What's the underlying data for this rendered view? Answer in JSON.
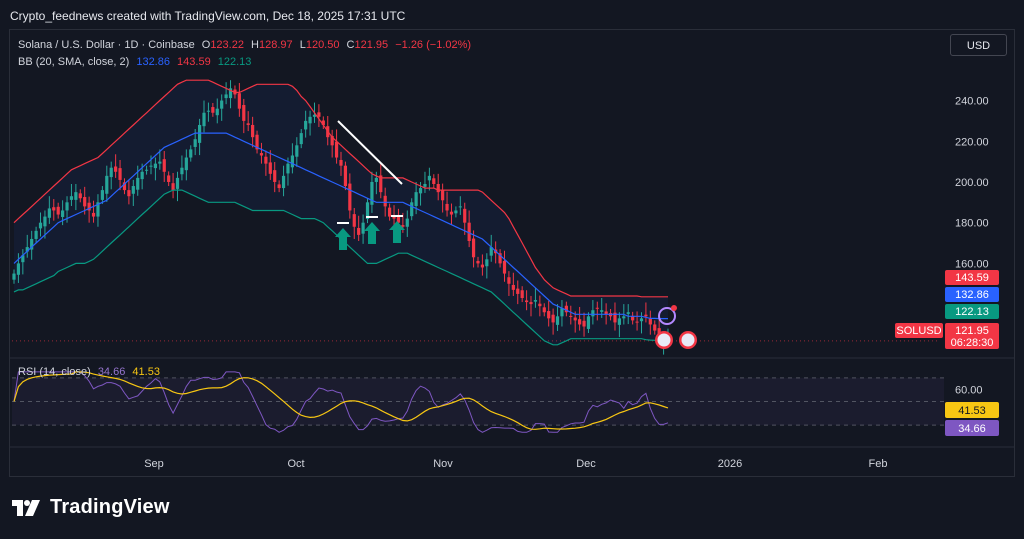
{
  "header": {
    "caption": "Crypto_feednews created with TradingView.com, Dec 18, 2025 17:31 UTC"
  },
  "symbol": {
    "name": "Solana / U.S. Dollar · 1D · Coinbase",
    "open_label": "O",
    "open": "123.22",
    "high_label": "H",
    "high": "128.97",
    "low_label": "L",
    "low": "120.50",
    "close_label": "C",
    "close": "121.95",
    "change": "−1.26 (−1.02%)"
  },
  "bb_legend": {
    "name": "BB (20, SMA, close, 2)",
    "basis": "132.86",
    "upper": "143.59",
    "lower": "122.13"
  },
  "rsi_legend": {
    "name": "RSI (14, close)",
    "rsi": "34.66",
    "ma": "41.53"
  },
  "currency_button": "USD",
  "brand": "TradingView",
  "colors": {
    "background": "#131722",
    "up": "#26a69a",
    "down": "#f23645",
    "bb_upper": "#f23645",
    "bb_basis": "#2962ff",
    "bb_lower": "#089981",
    "rsi_line": "#7e57c2",
    "rsi_ma": "#f7c613"
  },
  "chart_data": {
    "type": "candlestick",
    "title": "Solana / U.S. Dollar · 1D · Coinbase",
    "y_axis": {
      "ticks": [
        "240.00",
        "220.00",
        "200.00",
        "180.00",
        "160.00"
      ],
      "ylim": [
        115,
        255
      ]
    },
    "x_axis": {
      "ticks": [
        "Sep",
        "Oct",
        "Nov",
        "Dec",
        "2026",
        "Feb"
      ]
    },
    "price_labels": [
      {
        "name": "bb-upper",
        "text": "143.59",
        "color": "#f23645"
      },
      {
        "name": "bb-basis",
        "text": "132.86",
        "color": "#2962ff"
      },
      {
        "name": "bb-lower",
        "text": "122.13",
        "color": "#089981"
      },
      {
        "name": "last-price",
        "text": "121.95",
        "color": "#f23645",
        "symbol": "SOLUSD",
        "countdown": "06:28:30"
      }
    ],
    "close_series": [
      155,
      160,
      164,
      168,
      172,
      176,
      180,
      183,
      187,
      186,
      184,
      186,
      190,
      193,
      195,
      192,
      188,
      186,
      183,
      190,
      196,
      203,
      207,
      205,
      201,
      196,
      193,
      198,
      202,
      205,
      206,
      208,
      209,
      210,
      205,
      200,
      196,
      202,
      207,
      212,
      216,
      221,
      228,
      234,
      235,
      234,
      236,
      240,
      243,
      246,
      243,
      236,
      230,
      228,
      222,
      216,
      213,
      209,
      204,
      200,
      197,
      203,
      209,
      213,
      218,
      224,
      230,
      232,
      233,
      232,
      228,
      222,
      218,
      212,
      208,
      198,
      186,
      178,
      174,
      180,
      190,
      200,
      202,
      195,
      188,
      183,
      182,
      180,
      178,
      182,
      190,
      195,
      197,
      199,
      203,
      199,
      195,
      191,
      186,
      184,
      186,
      188,
      180,
      171,
      163,
      160,
      158,
      162,
      168,
      165,
      160,
      155,
      150,
      147,
      145,
      143,
      141,
      140,
      142,
      139,
      136,
      133,
      131,
      134,
      138,
      136,
      134,
      132,
      130,
      129,
      134,
      137,
      138,
      137,
      135,
      134,
      131,
      133,
      134,
      136,
      132,
      131,
      133,
      134,
      130,
      127,
      123,
      122,
      121.95
    ],
    "bb_upper": [
      180,
      182,
      184,
      186,
      188,
      190,
      192,
      194,
      196,
      198,
      200,
      202,
      204,
      206,
      207,
      208,
      209,
      210,
      211,
      212,
      214,
      216,
      218,
      220,
      222,
      224,
      226,
      228,
      230,
      232,
      234,
      236,
      238,
      240,
      242,
      244,
      246,
      248,
      249,
      250,
      250,
      250,
      250,
      250,
      250,
      249,
      248,
      247,
      246,
      245,
      244,
      244,
      245,
      246,
      247,
      248,
      248,
      248,
      248,
      248,
      248,
      248,
      248,
      247,
      245,
      242,
      240,
      237,
      234,
      231,
      228,
      225,
      222,
      220,
      218,
      216,
      214,
      212,
      210,
      208,
      206,
      204,
      203,
      202,
      202,
      202,
      202,
      202,
      202,
      201,
      200,
      199,
      198,
      197,
      197,
      197,
      196,
      196,
      196,
      196,
      196,
      196,
      196,
      196,
      196,
      196,
      195,
      193,
      191,
      189,
      187,
      185,
      182,
      178,
      174,
      170,
      166,
      162,
      158,
      155,
      152,
      150,
      148,
      147,
      146,
      145,
      144,
      144,
      144,
      144,
      144,
      144,
      144,
      144,
      144,
      144,
      144,
      144,
      144,
      144,
      144,
      144,
      143.6,
      143.6,
      143.6,
      143.6,
      143.6,
      143.59,
      143.59
    ],
    "bb_basis": [
      160,
      162,
      164,
      166,
      168,
      170,
      172,
      174,
      176,
      178,
      180,
      181,
      182,
      183,
      184,
      185,
      186,
      187,
      188,
      189,
      190,
      191,
      193,
      195,
      197,
      199,
      201,
      203,
      205,
      207,
      209,
      211,
      213,
      215,
      217,
      218,
      219,
      220,
      221,
      222,
      223,
      224,
      224,
      224,
      224,
      224,
      224,
      224,
      224,
      223,
      222,
      221,
      220,
      219,
      218,
      217,
      216,
      215,
      214,
      213,
      212,
      211,
      210,
      209,
      208,
      207,
      206,
      205,
      204,
      203,
      202,
      201,
      200,
      199,
      198,
      197,
      196,
      195,
      194,
      193,
      192,
      191,
      190,
      190,
      190,
      190,
      190,
      190,
      190,
      189,
      188,
      187,
      186,
      185,
      184,
      183,
      182,
      181,
      180,
      179,
      178,
      177,
      176,
      175,
      174,
      173,
      172,
      170,
      168,
      166,
      164,
      162,
      160,
      158,
      156,
      154,
      152,
      150,
      148,
      146,
      144,
      142,
      140,
      139,
      138,
      137,
      136,
      135,
      135,
      135,
      135,
      135,
      135,
      135,
      135,
      135,
      135,
      135,
      135,
      134,
      134,
      134,
      134,
      133.5,
      133,
      133,
      132.9,
      132.86,
      132.86
    ],
    "bb_lower": [
      146,
      147,
      147,
      148,
      149,
      150,
      151,
      152,
      153,
      154,
      156,
      157,
      158,
      159,
      160,
      160,
      160,
      161,
      162,
      164,
      166,
      168,
      170,
      172,
      174,
      176,
      178,
      180,
      182,
      184,
      186,
      188,
      190,
      192,
      194,
      195,
      196,
      196,
      196,
      195,
      194,
      193,
      192,
      191,
      190,
      190,
      190,
      190,
      190,
      190,
      190,
      189,
      188,
      187,
      186,
      186,
      186,
      186,
      186,
      186,
      186,
      186,
      185,
      184,
      183,
      182,
      182,
      182,
      182,
      181,
      180,
      178,
      176,
      174,
      172,
      170,
      168,
      166,
      164,
      162,
      160,
      160,
      160,
      161,
      162,
      163,
      164,
      165,
      165,
      165,
      164,
      163,
      162,
      161,
      160,
      159,
      158,
      157,
      156,
      155,
      154,
      153,
      152,
      151,
      150,
      149,
      148,
      147,
      146,
      144,
      142,
      140,
      138,
      136,
      134,
      132,
      130,
      128,
      126,
      124,
      122,
      121,
      120,
      120,
      121,
      122,
      123,
      123,
      123,
      123,
      123,
      123,
      123,
      123,
      123,
      123,
      123,
      123,
      123,
      123,
      123,
      123,
      123,
      122.5,
      122.3,
      122.2,
      122.13,
      122.13,
      122.13
    ]
  },
  "rsi_chart": {
    "type": "line",
    "y_axis": {
      "ticks": [
        "60.00"
      ],
      "ylim": [
        20,
        80
      ]
    },
    "levels": [
      70,
      50,
      30
    ],
    "value_labels": [
      {
        "text": "41.53",
        "color": "#f7c613"
      },
      {
        "text": "34.66",
        "color": "#7e57c2"
      }
    ]
  }
}
